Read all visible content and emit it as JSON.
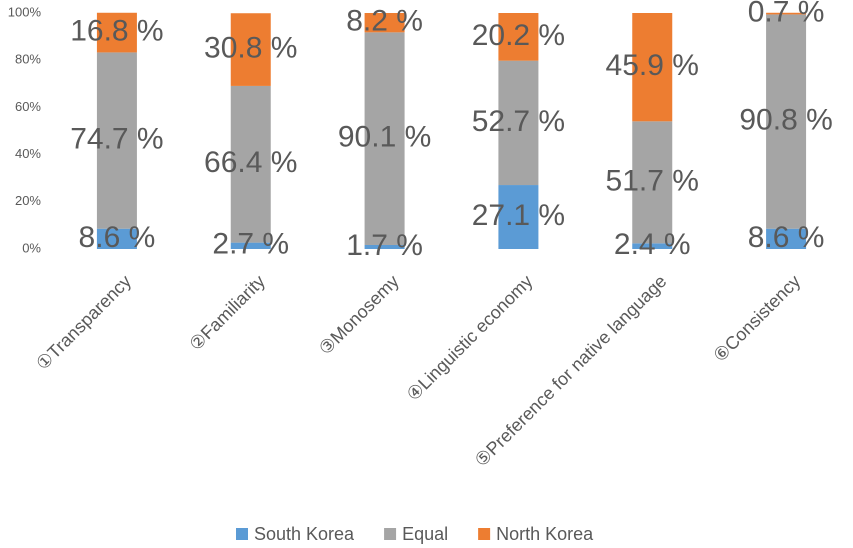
{
  "chart_data": {
    "type": "stacked_bar",
    "categories": [
      "①Transparency",
      "②Familiarity",
      "③Monosemy",
      "④Linguistic economy",
      "⑤Preference for native language",
      "⑥Consistency"
    ],
    "series": [
      {
        "name": "South Korea",
        "color": "#5b9bd5",
        "values": [
          8.6,
          2.7,
          1.7,
          27.1,
          2.4,
          8.6
        ],
        "value_labels": [
          "8.6 %",
          "2.7 %",
          "1.7 %",
          "27.1 %",
          "2.4 %",
          "8.6 %"
        ]
      },
      {
        "name": "Equal",
        "color": "#a5a5a5",
        "values": [
          74.7,
          66.4,
          90.1,
          52.7,
          51.7,
          90.8
        ],
        "value_labels": [
          "74.7 %",
          "66.4 %",
          "90.1 %",
          "52.7 %",
          "51.7 %",
          "90.8 %"
        ]
      },
      {
        "name": "North Korea",
        "color": "#ed7d31",
        "values": [
          16.8,
          30.8,
          8.2,
          20.2,
          45.9,
          0.7
        ],
        "value_labels": [
          "16.8 %",
          "30.8 %",
          "8.2 %",
          "20.2 %",
          "45.9 %",
          "0.7 %"
        ]
      }
    ],
    "ylim": [
      0,
      100
    ],
    "yticks": [
      {
        "value": 0,
        "label": "0%"
      },
      {
        "value": 20,
        "label": "20%"
      },
      {
        "value": 40,
        "label": "40%"
      },
      {
        "value": 60,
        "label": "60%"
      },
      {
        "value": 80,
        "label": "80%"
      },
      {
        "value": 100,
        "label": "100%"
      }
    ],
    "legend": "bottom"
  }
}
